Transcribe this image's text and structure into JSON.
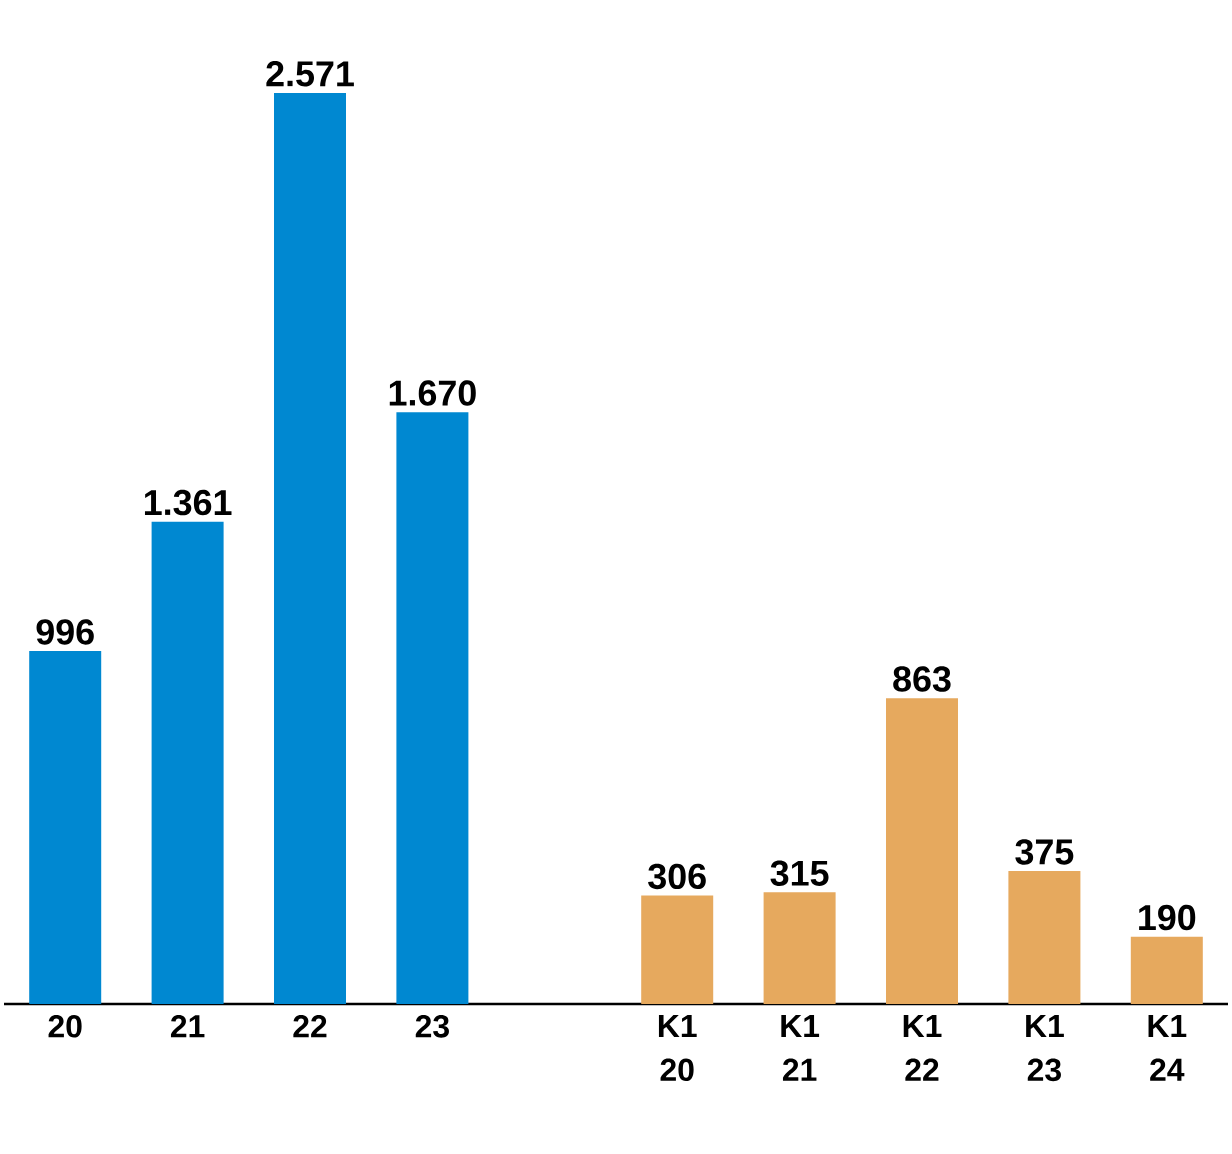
{
  "chart_data": {
    "type": "bar",
    "categories": [
      "20",
      "21",
      "22",
      "23",
      null,
      "K1 20",
      "K1 21",
      "K1 22",
      "K1 23",
      "K1 24"
    ],
    "values": [
      996,
      1361,
      2571,
      1670,
      null,
      306,
      315,
      863,
      375,
      190
    ],
    "colors": [
      "#0088d1",
      "#0088d1",
      "#0088d1",
      "#0088d1",
      null,
      "#e6a95e",
      "#e6a95e",
      "#e6a95e",
      "#e6a95e",
      "#e6a95e"
    ],
    "value_labels": [
      "996",
      "1.361",
      "2.571",
      "1.670",
      null,
      "306",
      "315",
      "863",
      "375",
      "190"
    ],
    "grid": false
  }
}
